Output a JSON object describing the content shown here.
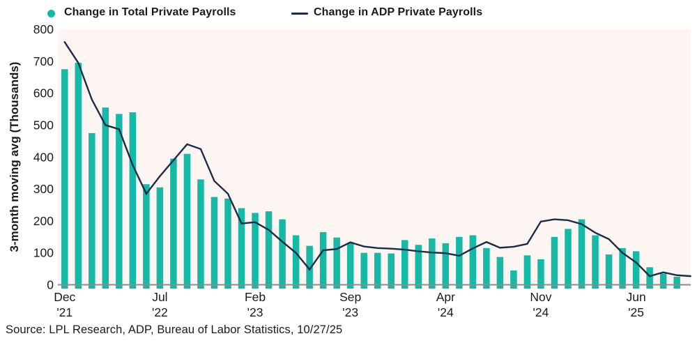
{
  "legend": {
    "bar_series_label": "Change in Total Private Payrolls",
    "line_series_label": "Change in ADP Private Payrolls"
  },
  "y_axis_title": "3-month moving avg (Thousands)",
  "source_note": "Source: LPL Research, ADP, Bureau of Labor Statistics, 10/27/25",
  "colors": {
    "bar": "#16B8A6",
    "line": "#1B2B4A",
    "plot_background": "#FCF5F2",
    "axis": "#8C8C8C",
    "text": "#1A1A1A"
  },
  "chart_data": {
    "type": "bar",
    "subtype": "bar+line combo",
    "title": "",
    "xlabel": "",
    "ylabel": "3-month moving avg (Thousands)",
    "ylim": [
      0,
      800
    ],
    "y_ticks": [
      0,
      100,
      200,
      300,
      400,
      500,
      600,
      700,
      800
    ],
    "grid": false,
    "legend_position": "top",
    "categories": [
      "Dec '21",
      "Jan '22",
      "Feb '22",
      "Mar '22",
      "Apr '22",
      "May '22",
      "Jun '22",
      "Jul '22",
      "Aug '22",
      "Sep '22",
      "Oct '22",
      "Nov '22",
      "Dec '22",
      "Jan '23",
      "Feb '23",
      "Mar '23",
      "Apr '23",
      "May '23",
      "Jun '23",
      "Jul '23",
      "Aug '23",
      "Sep '23",
      "Oct '23",
      "Nov '23",
      "Dec '23",
      "Jan '24",
      "Feb '24",
      "Mar '24",
      "Apr '24",
      "May '24",
      "Jun '24",
      "Jul '24",
      "Aug '24",
      "Sep '24",
      "Oct '24",
      "Nov '24",
      "Dec '24",
      "Jan '25",
      "Feb '25",
      "Mar '25",
      "Apr '25",
      "May '25",
      "Jun '25",
      "Jul '25",
      "Aug '25",
      "Sep '25",
      "Oct '25"
    ],
    "x_ticks": [
      {
        "index": 0,
        "line1": "Dec",
        "line2": "'21"
      },
      {
        "index": 7,
        "line1": "Jul",
        "line2": "'22"
      },
      {
        "index": 14,
        "line1": "Feb",
        "line2": "'23"
      },
      {
        "index": 21,
        "line1": "Sep",
        "line2": "'23"
      },
      {
        "index": 28,
        "line1": "Apr",
        "line2": "'24"
      },
      {
        "index": 35,
        "line1": "Nov",
        "line2": "'24"
      },
      {
        "index": 42,
        "line1": "Jun",
        "line2": "'25"
      }
    ],
    "series": [
      {
        "name": "Change in Total Private Payrolls",
        "type": "bar",
        "color": "#16B8A6",
        "values": [
          675,
          695,
          475,
          555,
          535,
          540,
          315,
          305,
          395,
          410,
          330,
          275,
          270,
          240,
          225,
          230,
          205,
          155,
          122,
          165,
          148,
          130,
          100,
          100,
          98,
          140,
          125,
          145,
          130,
          150,
          155,
          115,
          87,
          45,
          92,
          80,
          150,
          175,
          205,
          155,
          95,
          115,
          105,
          55,
          35,
          25,
          null
        ]
      },
      {
        "name": "Change in ADP Private Payrolls",
        "type": "line",
        "color": "#1B2B4A",
        "values": [
          760,
          695,
          580,
          500,
          487,
          375,
          285,
          340,
          390,
          440,
          425,
          325,
          285,
          192,
          196,
          172,
          135,
          100,
          48,
          108,
          112,
          133,
          120,
          115,
          113,
          110,
          105,
          101,
          99,
          91,
          114,
          134,
          116,
          119,
          128,
          198,
          205,
          202,
          190,
          163,
          143,
          100,
          70,
          27,
          39,
          30,
          27
        ]
      }
    ]
  }
}
